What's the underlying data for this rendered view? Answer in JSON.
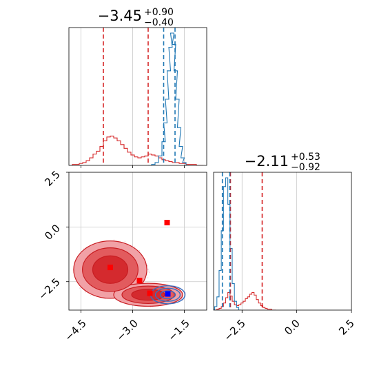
{
  "chart_data": [
    {
      "type": "histogram",
      "panel": "top-left",
      "title": {
        "value": "−3.45",
        "upper": "+0.90",
        "lower": "−0.40"
      },
      "xlim": [
        -4.85,
        -0.85
      ],
      "grid": true,
      "series": [
        {
          "name": "",
          "color": "#d62728",
          "x": [
            -4.7,
            -4.6,
            -4.5,
            -4.4,
            -4.3,
            -4.2,
            -4.1,
            -4.0,
            -3.9,
            -3.8,
            -3.7,
            -3.6,
            -3.5,
            -3.4,
            -3.3,
            -3.2,
            -3.1,
            -3.0,
            -2.9,
            -2.8,
            -2.7,
            -2.6,
            -2.5,
            -2.4,
            -2.3,
            -2.2,
            -2.1,
            -2.0,
            -1.9,
            -1.8,
            -1.7,
            -1.6,
            -1.5,
            -1.4,
            -1.3,
            -1.2,
            -1.1,
            -1.0
          ],
          "values": [
            1,
            1,
            2,
            3,
            5,
            8,
            12,
            15,
            20,
            26,
            30,
            31,
            29,
            26,
            22,
            18,
            14,
            11,
            9,
            8,
            9,
            10,
            12,
            11,
            10,
            8,
            6,
            5,
            4,
            3,
            3,
            2,
            2,
            1,
            1,
            1,
            0,
            0
          ]
        },
        {
          "name": "",
          "color": "#1f77b4",
          "x": [
            -2.5,
            -2.4,
            -2.3,
            -2.2,
            -2.1,
            -2.05,
            -2.0,
            -1.95,
            -1.9,
            -1.85,
            -1.8,
            -1.75,
            -1.7,
            -1.65,
            -1.6,
            -1.55,
            -1.5,
            -1.4
          ],
          "values": [
            0,
            1,
            3,
            10,
            25,
            45,
            70,
            100,
            125,
            140,
            128,
            100,
            70,
            40,
            20,
            8,
            3,
            0
          ]
        }
      ],
      "quantiles": [
        {
          "color": "#d62728",
          "values": [
            -3.85,
            -2.55
          ]
        },
        {
          "color": "#1f77b4",
          "values": [
            -2.1,
            -1.77
          ]
        }
      ]
    },
    {
      "type": "histogram",
      "panel": "bottom-right",
      "title": {
        "value": "−2.11",
        "upper": "+0.53",
        "lower": "−0.92"
      },
      "xlim": [
        -3.8,
        2.5
      ],
      "xticks": [
        "−2.5",
        "0.0",
        "2.5"
      ],
      "grid": true,
      "series": [
        {
          "name": "",
          "color": "#d62728",
          "x": [
            -3.7,
            -3.6,
            -3.5,
            -3.4,
            -3.3,
            -3.2,
            -3.1,
            -3.0,
            -2.9,
            -2.8,
            -2.7,
            -2.6,
            -2.5,
            -2.4,
            -2.3,
            -2.2,
            -2.1,
            -2.0,
            -1.9,
            -1.8,
            -1.7,
            -1.6,
            -1.5,
            -1.4,
            -1.3,
            -1.2,
            -1.1,
            -1.0
          ],
          "values": [
            0,
            1,
            2,
            4,
            8,
            14,
            20,
            16,
            10,
            6,
            5,
            6,
            8,
            10,
            13,
            15,
            18,
            20,
            17,
            12,
            8,
            5,
            3,
            2,
            1,
            1,
            0,
            0
          ]
        },
        {
          "name": "",
          "color": "#1f77b4",
          "x": [
            -3.8,
            -3.7,
            -3.6,
            -3.5,
            -3.4,
            -3.3,
            -3.2,
            -3.1,
            -3.0,
            -2.9,
            -2.8,
            -2.7,
            -2.6
          ],
          "values": [
            0,
            4,
            15,
            45,
            90,
            140,
            150,
            120,
            70,
            30,
            10,
            3,
            0
          ]
        }
      ],
      "quantiles": [
        {
          "color": "#d62728",
          "values": [
            -3.03,
            -1.58
          ]
        },
        {
          "color": "#1f77b4",
          "values": [
            -3.4,
            -3.06
          ]
        }
      ]
    },
    {
      "type": "contour-scatter",
      "panel": "bottom-left",
      "xlim": [
        -4.85,
        -0.85
      ],
      "ylim": [
        -3.8,
        2.5
      ],
      "xticks": [
        "−4.5",
        "−3.0",
        "−1.5"
      ],
      "yticks": [
        "2.5",
        "0.0",
        "−2.5"
      ],
      "grid": true,
      "red_regions": [
        {
          "cx": -3.65,
          "cy": -1.95,
          "rx": 0.85,
          "ry": 1.05
        },
        {
          "cx": -2.55,
          "cy": -3.1,
          "rx": 0.8,
          "ry": 0.42
        }
      ],
      "blue_region": {
        "cx": -1.98,
        "cy": -3.1,
        "rx": 0.4,
        "ry": 0.33
      },
      "markers": [
        {
          "color": "#ff0000",
          "x": -3.65,
          "y": -1.85
        },
        {
          "color": "#ff0000",
          "x": -2.8,
          "y": -2.45
        },
        {
          "color": "#ff0000",
          "x": -2.5,
          "y": -3.03
        },
        {
          "color": "#ff0000",
          "x": -2.0,
          "y": 0.2
        },
        {
          "color": "#0000ff",
          "x": -1.98,
          "y": -3.06
        }
      ]
    }
  ]
}
